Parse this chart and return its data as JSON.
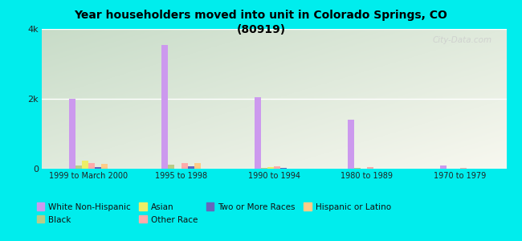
{
  "title": "Year householders moved into unit in Colorado Springs, CO\n(80919)",
  "categories": [
    "1999 to March 2000",
    "1995 to 1998",
    "1990 to 1994",
    "1980 to 1989",
    "1970 to 1979"
  ],
  "series": {
    "White Non-Hispanic": [
      2000,
      3550,
      2050,
      1400,
      100
    ],
    "Black": [
      100,
      110,
      25,
      15,
      10
    ],
    "Asian": [
      220,
      0,
      40,
      0,
      0
    ],
    "Other Race": [
      150,
      150,
      70,
      35,
      25
    ],
    "Two or More Races": [
      50,
      70,
      15,
      0,
      0
    ],
    "Hispanic or Latino": [
      140,
      155,
      0,
      0,
      0
    ]
  },
  "colors": {
    "White Non-Hispanic": "#cc99ee",
    "Black": "#b8cc88",
    "Asian": "#eeee66",
    "Other Race": "#ffaaaa",
    "Two or More Races": "#6666bb",
    "Hispanic or Latino": "#ffcc88"
  },
  "legend_order": [
    "White Non-Hispanic",
    "Black",
    "Asian",
    "Other Race",
    "Two or More Races",
    "Hispanic or Latino"
  ],
  "ylim": [
    0,
    4000
  ],
  "ytick_labels": [
    "0",
    "2k",
    "4k"
  ],
  "ytick_vals": [
    0,
    2000,
    4000
  ],
  "background_color": "#00eded",
  "watermark": "City-Data.com",
  "bar_width": 0.07
}
